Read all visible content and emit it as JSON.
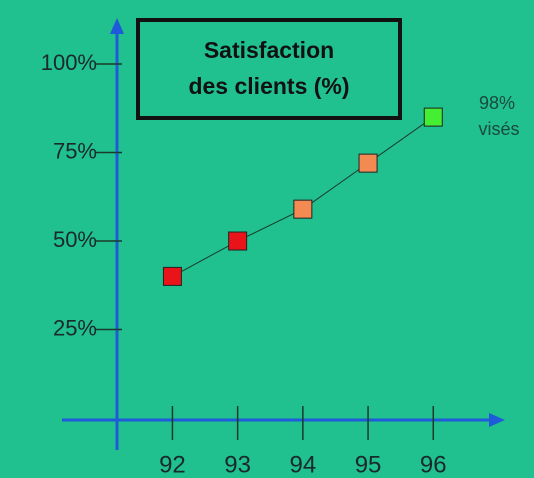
{
  "chart_data": {
    "type": "line",
    "title": [
      "Satisfaction",
      "des clients (%)"
    ],
    "annotation": [
      "98%",
      "visés"
    ],
    "x": [
      92,
      93,
      94,
      95,
      96
    ],
    "values": [
      40,
      50,
      59,
      72,
      85
    ],
    "colors": [
      "#e8141a",
      "#e8141a",
      "#f28a52",
      "#f28a52",
      "#44ee33"
    ],
    "line_color": "#1a3a2a",
    "axis_color": "#1f5ad8",
    "background": "#20c08f",
    "xlim": [
      91.15,
      97.1
    ],
    "ylim": [
      0,
      113
    ],
    "xticks": [
      92,
      93,
      94,
      95,
      96
    ],
    "yticks": [
      {
        "value": 25,
        "label": "25%"
      },
      {
        "value": 50,
        "label": "50%"
      },
      {
        "value": 75,
        "label": "75%"
      },
      {
        "value": 100,
        "label": "100%"
      }
    ]
  }
}
